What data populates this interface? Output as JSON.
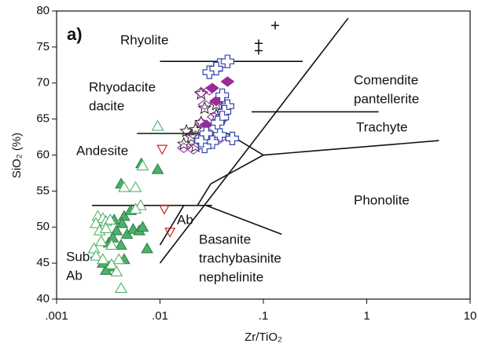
{
  "chart_data": {
    "type": "scatter",
    "panel_label": "a)",
    "x_label": "Zr/TiO₂",
    "y_label": "SiO₂ (%)",
    "xscale": "log",
    "xlim": [
      0.001,
      10
    ],
    "ylim": [
      40,
      80
    ],
    "xticks": [
      {
        "value": 0.001,
        "label": ".001"
      },
      {
        "value": 0.01,
        "label": ".01"
      },
      {
        "value": 0.1,
        "label": ".1"
      },
      1,
      10
    ],
    "yticks": [
      40,
      45,
      50,
      55,
      60,
      65,
      70,
      75,
      80
    ],
    "field_labels": [
      [
        "Rhyolite"
      ],
      [
        "Rhyodacite",
        "dacite"
      ],
      [
        "Andesite"
      ],
      [
        "Comendite",
        "pantellerite"
      ],
      [
        "Trachyte"
      ],
      [
        "Phonolite"
      ],
      [
        "Ab"
      ],
      [
        "Sub-",
        "Ab"
      ],
      [
        "Basanite",
        "trachybasinite",
        "nephelinite"
      ]
    ],
    "boundaries": [
      {
        "x": [
          0.01,
          0.24
        ],
        "y": [
          73,
          73
        ]
      },
      {
        "x": [
          0.006,
          0.045,
          0.1,
          5
        ],
        "y": [
          63,
          63,
          60,
          62
        ]
      },
      {
        "x": [
          0.0022,
          0.032
        ],
        "y": [
          53,
          53
        ]
      },
      {
        "x": [
          0.1,
          0.031,
          0.023
        ],
        "y": [
          60,
          56,
          53
        ]
      },
      {
        "x": [
          0.66,
          0.01
        ],
        "y": [
          79,
          45
        ]
      },
      {
        "x": [
          0.077,
          1.3
        ],
        "y": [
          66,
          66
        ]
      },
      {
        "x": [
          0.028,
          0.15
        ],
        "y": [
          53,
          49
        ]
      },
      {
        "x": [
          0.01,
          0.017
        ],
        "y": [
          47.5,
          53
        ]
      }
    ],
    "series": [
      {
        "marker": "triangle",
        "color": "#4caf6a",
        "x": [
          0.0095,
          0.0066,
          0.0042,
          0.0045,
          0.0043,
          0.0038,
          0.0032,
          0.0048,
          0.0055,
          0.0063,
          0.0068,
          0.0075,
          0.0042,
          0.0035,
          0.0045,
          0.0032,
          0.003,
          0.0028,
          0.0052,
          0.0036
        ],
        "values": [
          58,
          58.8,
          56,
          51.5,
          50.5,
          49.5,
          47.8,
          49,
          49.7,
          49.5,
          50,
          47,
          47.5,
          48.5,
          45.5,
          44.5,
          44,
          45,
          52.3,
          51
        ]
      },
      {
        "marker": "triangle-open",
        "color": "#3fae55",
        "x": [
          0.0095,
          0.0068,
          0.0058,
          0.0045,
          0.0065,
          0.0058,
          0.0025,
          0.0028,
          0.003,
          0.0033,
          0.0024,
          0.0026,
          0.003,
          0.0027,
          0.0023,
          0.0034,
          0.004,
          0.0034,
          0.0038,
          0.0042,
          0.0024,
          0.0028
        ],
        "values": [
          64,
          58.5,
          55.5,
          55.5,
          53,
          52.5,
          51.5,
          51.2,
          50.8,
          51,
          50.5,
          49.5,
          49.8,
          48,
          47,
          47.5,
          45.5,
          44.8,
          43.8,
          41.5,
          46,
          45.5
        ]
      },
      {
        "marker": "triangle-down-open",
        "color": "#cc2222",
        "x": [
          0.0105,
          0.011,
          0.0125
        ],
        "values": [
          60.8,
          52.5,
          49.3
        ]
      },
      {
        "marker": "star-open",
        "color": "#222222",
        "x": [
          0.025,
          0.027,
          0.025,
          0.022,
          0.018,
          0.02,
          0.017,
          0.022,
          0.026,
          0.03,
          0.035,
          0.035
        ],
        "values": [
          68.5,
          66.5,
          64.5,
          63.5,
          63.3,
          62.5,
          61.5,
          61.2,
          61.5,
          62.5,
          65.5,
          67
        ]
      },
      {
        "marker": "diamond-open",
        "color": "#a030a8",
        "x": [
          0.025,
          0.027,
          0.025,
          0.022,
          0.017,
          0.021,
          0.03,
          0.033,
          0.03,
          0.038
        ],
        "values": [
          68.7,
          67,
          64.5,
          62.7,
          61,
          60.8,
          63,
          65.3,
          69,
          62.3
        ]
      },
      {
        "marker": "diamond",
        "color": "#9a2a9a",
        "x": [
          0.035,
          0.045,
          0.035,
          0.04,
          0.028,
          0.032
        ],
        "values": [
          72,
          70.2,
          67.5,
          65,
          64.2,
          69.3
        ]
      },
      {
        "marker": "plus-open",
        "color": "#3344aa",
        "x": [
          0.03,
          0.038,
          0.045,
          0.035,
          0.04,
          0.045,
          0.042,
          0.038,
          0.032,
          0.027,
          0.025,
          0.028,
          0.04,
          0.036,
          0.05
        ],
        "values": [
          71.5,
          72.5,
          73,
          72,
          68.3,
          66.8,
          66,
          62.8,
          61.8,
          61.2,
          62,
          63,
          65.2,
          64.5,
          62.3
        ]
      },
      {
        "marker": "plus",
        "color": "#111111",
        "x": [
          0.13,
          0.09,
          0.09
        ],
        "values": [
          78,
          75.5,
          74.5
        ]
      }
    ]
  }
}
